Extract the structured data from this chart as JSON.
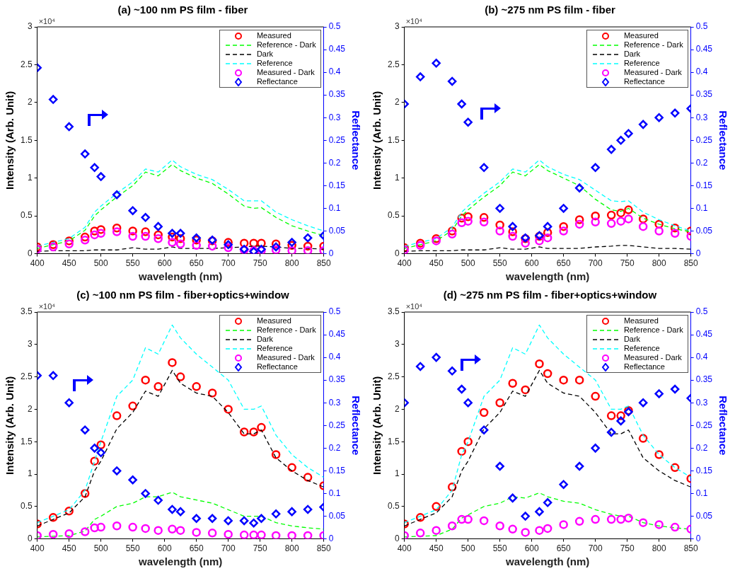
{
  "chart_data": [
    {
      "type": "line",
      "title": "(a) ~100 nm PS film - fiber",
      "xlabel": "wavelength (nm)",
      "ylabel": "Intensity (Arb. Unit)",
      "y2label": "Reflectance",
      "annotations": [
        "×10⁴"
      ],
      "legend": "top right",
      "x": [
        400,
        425,
        450,
        475,
        490,
        500,
        525,
        550,
        570,
        590,
        612,
        625,
        650,
        675,
        700,
        725,
        740,
        752,
        775,
        800,
        825,
        850
      ],
      "xlim": [
        400,
        850
      ],
      "xticks": [
        400,
        450,
        500,
        550,
        600,
        650,
        700,
        750,
        800,
        850
      ],
      "ylim": [
        0,
        3
      ],
      "yticks": [
        0,
        0.5,
        1,
        1.5,
        2,
        2.5,
        3
      ],
      "y2lim": [
        0,
        0.5
      ],
      "y2ticks": [
        0,
        0.05,
        0.1,
        0.15,
        0.2,
        0.25,
        0.3,
        0.35,
        0.4,
        0.45,
        0.5
      ],
      "series": [
        {
          "name": "Measured",
          "type": "scatter",
          "marker": "circle",
          "color": "#ff0000",
          "values": [
            0.09,
            0.12,
            0.17,
            0.22,
            0.3,
            0.32,
            0.34,
            0.3,
            0.29,
            0.25,
            0.22,
            0.2,
            0.18,
            0.17,
            0.15,
            0.14,
            0.14,
            0.14,
            0.13,
            0.11,
            0.1,
            0.1
          ]
        },
        {
          "name": "Reference - Dark",
          "line_style": "dashed",
          "color": "#00ff00",
          "values": [
            0.07,
            0.12,
            0.17,
            0.31,
            0.5,
            0.58,
            0.75,
            0.9,
            1.08,
            1.03,
            1.18,
            1.1,
            1,
            0.93,
            0.79,
            0.63,
            0.6,
            0.61,
            0.48,
            0.37,
            0.3,
            0.24
          ]
        },
        {
          "name": "Dark",
          "line_style": "dashed",
          "color": "#000000",
          "values": [
            0.03,
            0.04,
            0.04,
            0.04,
            0.05,
            0.05,
            0.05,
            0.08,
            0.06,
            0.06,
            0.09,
            0.07,
            0.07,
            0.07,
            0.08,
            0.09,
            0.1,
            0.1,
            0.09,
            0.07,
            0.07,
            0.06
          ]
        },
        {
          "name": "Reference",
          "line_style": "dashed",
          "color": "#00ffff",
          "values": [
            0.1,
            0.15,
            0.2,
            0.35,
            0.55,
            0.63,
            0.8,
            0.95,
            1.12,
            1.08,
            1.24,
            1.15,
            1.05,
            0.98,
            0.85,
            0.7,
            0.7,
            0.7,
            0.55,
            0.45,
            0.37,
            0.3
          ]
        },
        {
          "name": "Measured - Dark",
          "type": "scatter",
          "marker": "circle",
          "color": "#ff00ff",
          "values": [
            0.06,
            0.09,
            0.13,
            0.18,
            0.25,
            0.27,
            0.29,
            0.23,
            0.23,
            0.2,
            0.15,
            0.13,
            0.11,
            0.1,
            0.08,
            0.05,
            0.04,
            0.04,
            0.05,
            0.04,
            0.04,
            0.04
          ]
        },
        {
          "name": "Reflectance",
          "type": "scatter",
          "marker": "diamond",
          "axis": "y2",
          "color": "#0000ff",
          "values": [
            0.41,
            0.34,
            0.28,
            0.22,
            0.19,
            0.17,
            0.13,
            0.095,
            0.08,
            0.06,
            0.045,
            0.045,
            0.035,
            0.03,
            0.02,
            0.01,
            0.005,
            0.01,
            0.015,
            0.025,
            0.035,
            0.04
          ]
        }
      ]
    },
    {
      "type": "line",
      "title": "(b) ~275 nm PS film - fiber",
      "xlabel": "wavelength (nm)",
      "ylabel": "Intensity (Arb. Unit)",
      "y2label": "Reflectance",
      "annotations": [
        "×10⁴"
      ],
      "legend": "top right",
      "x": [
        400,
        425,
        450,
        475,
        490,
        500,
        525,
        550,
        570,
        590,
        612,
        625,
        650,
        675,
        700,
        725,
        740,
        752,
        775,
        800,
        825,
        850
      ],
      "xlim": [
        400,
        850
      ],
      "xticks": [
        400,
        450,
        500,
        550,
        600,
        650,
        700,
        750,
        800,
        850
      ],
      "ylim": [
        0,
        3
      ],
      "yticks": [
        0,
        0.5,
        1,
        1.5,
        2,
        2.5,
        3
      ],
      "y2lim": [
        0,
        0.5
      ],
      "y2ticks": [
        0,
        0.05,
        0.1,
        0.15,
        0.2,
        0.25,
        0.3,
        0.35,
        0.4,
        0.45,
        0.5
      ],
      "series": [
        {
          "name": "Measured",
          "type": "scatter",
          "marker": "circle",
          "color": "#ff0000",
          "values": [
            0.08,
            0.14,
            0.2,
            0.3,
            0.47,
            0.49,
            0.48,
            0.38,
            0.29,
            0.2,
            0.23,
            0.28,
            0.36,
            0.45,
            0.5,
            0.51,
            0.54,
            0.58,
            0.46,
            0.39,
            0.34,
            0.3
          ]
        },
        {
          "name": "Reference - Dark",
          "line_style": "dashed",
          "color": "#00ff00",
          "values": [
            0.07,
            0.12,
            0.17,
            0.31,
            0.5,
            0.58,
            0.75,
            0.9,
            1.08,
            1.03,
            1.18,
            1.1,
            1,
            0.9,
            0.72,
            0.58,
            0.56,
            0.6,
            0.47,
            0.39,
            0.33,
            0.29
          ]
        },
        {
          "name": "Dark",
          "line_style": "dashed",
          "color": "#000000",
          "values": [
            0.03,
            0.04,
            0.04,
            0.04,
            0.05,
            0.05,
            0.05,
            0.08,
            0.06,
            0.06,
            0.09,
            0.07,
            0.07,
            0.07,
            0.09,
            0.1,
            0.11,
            0.11,
            0.09,
            0.07,
            0.07,
            0.06
          ]
        },
        {
          "name": "Reference",
          "line_style": "dashed",
          "color": "#00ffff",
          "values": [
            0.1,
            0.15,
            0.2,
            0.35,
            0.55,
            0.63,
            0.8,
            0.95,
            1.12,
            1.08,
            1.24,
            1.15,
            1.05,
            0.98,
            0.84,
            0.7,
            0.69,
            0.7,
            0.55,
            0.45,
            0.37,
            0.3
          ]
        },
        {
          "name": "Measured - Dark",
          "type": "scatter",
          "marker": "circle",
          "color": "#ff00ff",
          "values": [
            0.05,
            0.11,
            0.17,
            0.26,
            0.41,
            0.43,
            0.42,
            0.3,
            0.23,
            0.14,
            0.17,
            0.21,
            0.3,
            0.39,
            0.42,
            0.4,
            0.43,
            0.46,
            0.36,
            0.3,
            0.27,
            0.23
          ]
        },
        {
          "name": "Reflectance",
          "type": "scatter",
          "marker": "diamond",
          "axis": "y2",
          "color": "#0000ff",
          "values": [
            0.33,
            0.39,
            0.42,
            0.38,
            0.33,
            0.29,
            0.19,
            0.1,
            0.06,
            0.035,
            0.04,
            0.06,
            0.1,
            0.145,
            0.19,
            0.23,
            0.25,
            0.265,
            0.285,
            0.3,
            0.31,
            0.32
          ]
        }
      ]
    },
    {
      "type": "line",
      "title": "(c) ~100 nm PS film - fiber+optics+window",
      "xlabel": "wavelength (nm)",
      "ylabel": "Intensity (Arb. Unit)",
      "y2label": "Reflectance",
      "annotations": [
        "×10⁴"
      ],
      "legend": "top right",
      "x": [
        400,
        425,
        450,
        475,
        490,
        500,
        525,
        550,
        570,
        590,
        612,
        625,
        650,
        675,
        700,
        725,
        740,
        752,
        775,
        800,
        825,
        850
      ],
      "xlim": [
        400,
        850
      ],
      "xticks": [
        400,
        450,
        500,
        550,
        600,
        650,
        700,
        750,
        800,
        850
      ],
      "ylim": [
        0,
        3.5
      ],
      "yticks": [
        0,
        0.5,
        1,
        1.5,
        2,
        2.5,
        3,
        3.5
      ],
      "y2lim": [
        0,
        0.5
      ],
      "y2ticks": [
        0,
        0.05,
        0.1,
        0.15,
        0.2,
        0.25,
        0.3,
        0.35,
        0.4,
        0.45,
        0.5
      ],
      "series": [
        {
          "name": "Measured",
          "type": "scatter",
          "marker": "circle",
          "color": "#ff0000",
          "values": [
            0.23,
            0.33,
            0.43,
            0.7,
            1.2,
            1.45,
            1.9,
            2.05,
            2.45,
            2.35,
            2.72,
            2.5,
            2.35,
            2.25,
            2,
            1.65,
            1.65,
            1.72,
            1.3,
            1.1,
            0.95,
            0.82
          ]
        },
        {
          "name": "Reference - Dark",
          "line_style": "dashed",
          "color": "#00ff00",
          "values": [
            0.03,
            0.04,
            0.05,
            0.12,
            0.3,
            0.35,
            0.5,
            0.55,
            0.65,
            0.65,
            0.72,
            0.65,
            0.6,
            0.55,
            0.45,
            0.35,
            0.35,
            0.35,
            0.25,
            0.2,
            0.17,
            0.15
          ]
        },
        {
          "name": "Dark",
          "line_style": "dashed",
          "color": "#000000",
          "values": [
            0.2,
            0.3,
            0.4,
            0.65,
            1.05,
            1.2,
            1.7,
            1.95,
            2.28,
            2.2,
            2.6,
            2.4,
            2.25,
            2.2,
            1.95,
            1.62,
            1.62,
            1.68,
            1.25,
            1.05,
            0.9,
            0.8
          ]
        },
        {
          "name": "Reference",
          "line_style": "dashed",
          "color": "#00ffff",
          "values": [
            0.25,
            0.35,
            0.45,
            0.75,
            1.2,
            1.5,
            2.2,
            2.45,
            2.95,
            2.85,
            3.3,
            3.1,
            2.85,
            null,
            2.45,
            2,
            2,
            2.05,
            1.6,
            1.3,
            1.1,
            0.95
          ]
        },
        {
          "name": "Measured - Dark",
          "type": "scatter",
          "marker": "circle",
          "color": "#ff00ff",
          "values": [
            0.05,
            0.07,
            0.08,
            0.11,
            0.17,
            0.18,
            0.2,
            0.18,
            0.16,
            0.13,
            0.15,
            0.13,
            0.1,
            0.09,
            0.07,
            0.06,
            0.06,
            0.06,
            0.05,
            0.05,
            0.05,
            0.05
          ]
        },
        {
          "name": "Reflectance",
          "type": "scatter",
          "marker": "diamond",
          "axis": "y2",
          "color": "#0000ff",
          "values": [
            0.36,
            0.36,
            0.3,
            0.24,
            0.2,
            0.19,
            0.15,
            0.13,
            0.1,
            0.085,
            0.065,
            0.06,
            0.045,
            0.045,
            0.04,
            0.04,
            0.035,
            0.045,
            0.055,
            0.06,
            0.065,
            0.07
          ]
        }
      ]
    },
    {
      "type": "line",
      "title": "(d) ~275 nm PS film - fiber+optics+window",
      "xlabel": "wavelength (nm)",
      "ylabel": "Intensity (Arb. Unit)",
      "y2label": "Reflectance",
      "annotations": [
        "×10⁴"
      ],
      "legend": "top right",
      "x": [
        400,
        425,
        450,
        475,
        490,
        500,
        525,
        550,
        570,
        590,
        612,
        625,
        650,
        675,
        700,
        725,
        740,
        752,
        775,
        800,
        825,
        850
      ],
      "xlim": [
        400,
        850
      ],
      "xticks": [
        400,
        450,
        500,
        550,
        600,
        650,
        700,
        750,
        800,
        850
      ],
      "ylim": [
        0,
        3.5
      ],
      "yticks": [
        0,
        0.5,
        1,
        1.5,
        2,
        2.5,
        3,
        3.5
      ],
      "y2lim": [
        0,
        0.5
      ],
      "y2ticks": [
        0,
        0.05,
        0.1,
        0.15,
        0.2,
        0.25,
        0.3,
        0.35,
        0.4,
        0.45,
        0.5
      ],
      "series": [
        {
          "name": "Measured",
          "type": "scatter",
          "marker": "circle",
          "color": "#ff0000",
          "values": [
            0.23,
            0.33,
            0.5,
            0.8,
            1.35,
            1.5,
            1.95,
            2.1,
            2.4,
            2.3,
            2.7,
            2.55,
            2.45,
            2.45,
            2.2,
            1.9,
            1.9,
            1.98,
            1.55,
            1.3,
            1.1,
            0.93
          ]
        },
        {
          "name": "Reference - Dark",
          "line_style": "dashed",
          "color": "#00ff00",
          "values": [
            0.03,
            0.04,
            0.05,
            0.15,
            0.32,
            0.37,
            0.5,
            0.55,
            0.65,
            0.63,
            0.71,
            0.65,
            0.58,
            0.55,
            0.45,
            0.38,
            0.35,
            0.35,
            0.25,
            0.2,
            0.17,
            0.15
          ]
        },
        {
          "name": "Dark",
          "line_style": "dashed",
          "color": "#000000",
          "values": [
            0.2,
            0.3,
            0.4,
            0.65,
            1.05,
            1.2,
            1.7,
            1.95,
            2.28,
            2.2,
            2.6,
            2.4,
            2.25,
            2.2,
            1.95,
            1.62,
            1.62,
            1.68,
            1.25,
            1.05,
            0.9,
            0.8
          ]
        },
        {
          "name": "Reference",
          "line_style": "dashed",
          "color": "#00ffff",
          "values": [
            0.25,
            0.35,
            0.45,
            0.75,
            1.3,
            1.5,
            2.2,
            2.45,
            2.95,
            2.85,
            3.3,
            3.1,
            2.85,
            null,
            2.45,
            2,
            2,
            2.05,
            1.6,
            1.3,
            1.1,
            0.95
          ]
        },
        {
          "name": "Measured - Dark",
          "type": "scatter",
          "marker": "circle",
          "color": "#ff00ff",
          "values": [
            0.05,
            0.09,
            0.13,
            0.2,
            0.3,
            0.3,
            0.28,
            0.2,
            0.15,
            0.1,
            0.13,
            0.16,
            0.22,
            0.27,
            0.3,
            0.3,
            0.3,
            0.32,
            0.25,
            0.22,
            0.18,
            0.15
          ]
        },
        {
          "name": "Reflectance",
          "type": "scatter",
          "marker": "diamond",
          "axis": "y2",
          "color": "#0000ff",
          "values": [
            0.3,
            0.38,
            0.4,
            0.37,
            0.33,
            0.3,
            0.24,
            0.16,
            0.09,
            0.05,
            0.06,
            0.08,
            0.12,
            0.16,
            0.2,
            0.235,
            0.26,
            0.28,
            0.3,
            0.32,
            0.33,
            0.31
          ]
        }
      ]
    }
  ]
}
